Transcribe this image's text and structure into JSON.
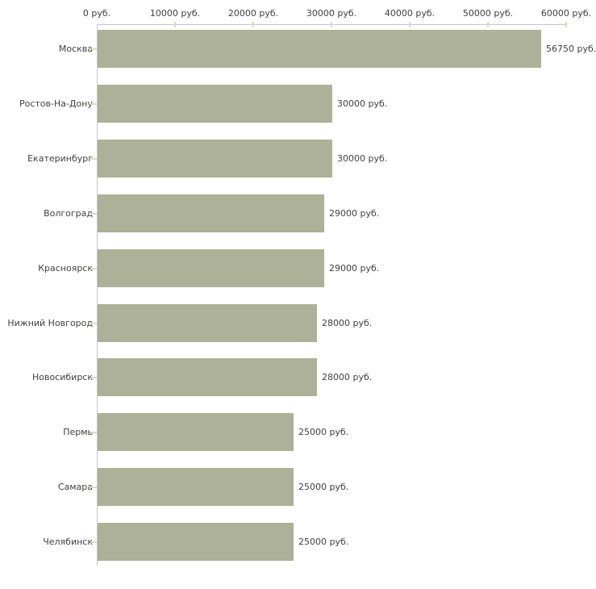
{
  "chart_data": {
    "type": "bar",
    "orientation": "horizontal",
    "categories": [
      "Москва",
      "Ростов-На-Дону",
      "Екатеринбург",
      "Волгоград",
      "Красноярск",
      "Нижний Новгород",
      "Новосибирск",
      "Пермь",
      "Самара",
      "Челябинск"
    ],
    "values": [
      56750,
      30000,
      30000,
      29000,
      29000,
      28000,
      28000,
      25000,
      25000,
      25000
    ],
    "value_labels": [
      "56750 руб.",
      "30000 руб.",
      "30000 руб.",
      "29000 руб.",
      "29000 руб.",
      "28000 руб.",
      "28000 руб.",
      "25000 руб.",
      "25000 руб.",
      "25000 руб."
    ],
    "x_ticks": [
      0,
      10000,
      20000,
      30000,
      40000,
      50000,
      60000
    ],
    "x_tick_labels": [
      "0 руб.",
      "10000 руб.",
      "20000 руб.",
      "30000 руб.",
      "40000 руб.",
      "50000 руб.",
      "60000 руб."
    ],
    "xlim": [
      0,
      60000
    ],
    "unit": "руб.",
    "xlabel": "",
    "ylabel": "",
    "title": "",
    "grid": false,
    "legend": false,
    "axis_position": "top",
    "bar_color": "#acb197",
    "axis_color": "#c6c6c6",
    "tick_color": "#d9dbc0",
    "text_color": "#3f3f3f",
    "background_color": "#ffffff"
  }
}
